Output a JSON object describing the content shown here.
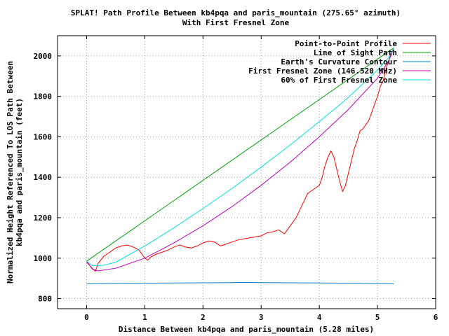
{
  "chart_data": {
    "type": "line",
    "title": "SPLAT! Path Profile Between kb4pqa and paris_mountain (275.65° azimuth)",
    "subtitle": "With First Fresnel Zone",
    "xlabel": "Distance Between kb4pqa and paris_mountain (5.28 miles)",
    "ylabel_line1": "Normalized Height Referenced To LOS Path Between",
    "ylabel_line2": "kb4pqa and paris_mountain (feet)",
    "xlim": [
      -0.5,
      6
    ],
    "ylim": [
      750,
      2100
    ],
    "xticks": [
      "0",
      "1",
      "2",
      "3",
      "4",
      "5",
      "6"
    ],
    "yticks": [
      "800",
      "1000",
      "1200",
      "1400",
      "1600",
      "1800",
      "2000"
    ],
    "grid": true,
    "legend_position": "top-right",
    "series": [
      {
        "name": "Point-to-Point Profile",
        "color": "#ff0000",
        "x": [
          0,
          0.08,
          0.15,
          0.2,
          0.3,
          0.4,
          0.5,
          0.6,
          0.7,
          0.8,
          0.9,
          1.0,
          1.05,
          1.1,
          1.2,
          1.3,
          1.4,
          1.5,
          1.6,
          1.7,
          1.8,
          1.9,
          2.0,
          2.1,
          2.2,
          2.3,
          2.4,
          2.5,
          2.6,
          2.7,
          2.8,
          2.9,
          3.0,
          3.1,
          3.2,
          3.3,
          3.4,
          3.5,
          3.6,
          3.7,
          3.8,
          3.9,
          4.0,
          4.05,
          4.1,
          4.15,
          4.2,
          4.25,
          4.3,
          4.35,
          4.4,
          4.45,
          4.5,
          4.55,
          4.6,
          4.65,
          4.7,
          4.75,
          4.8,
          4.85,
          4.9,
          4.95,
          5.0,
          5.05,
          5.1,
          5.15,
          5.2,
          5.23,
          5.25,
          5.28
        ],
        "values": [
          980,
          955,
          935,
          975,
          1010,
          1030,
          1050,
          1060,
          1065,
          1055,
          1040,
          1000,
          990,
          1005,
          1020,
          1030,
          1040,
          1055,
          1065,
          1055,
          1050,
          1060,
          1075,
          1085,
          1080,
          1060,
          1070,
          1080,
          1090,
          1095,
          1100,
          1105,
          1110,
          1125,
          1130,
          1140,
          1120,
          1160,
          1200,
          1260,
          1320,
          1340,
          1360,
          1400,
          1460,
          1500,
          1530,
          1500,
          1440,
          1380,
          1330,
          1360,
          1420,
          1480,
          1540,
          1580,
          1630,
          1640,
          1660,
          1680,
          1720,
          1760,
          1800,
          1850,
          1880,
          1940,
          1980,
          2010,
          2020,
          2040
        ]
      },
      {
        "name": "Line of Sight Path",
        "color": "#00a000",
        "x": [
          0,
          5.28
        ],
        "values": [
          985,
          2040
        ]
      },
      {
        "name": "Earth's Curvature Contour",
        "color": "#0080c0",
        "x": [
          0,
          0.5,
          1,
          1.5,
          2,
          2.5,
          2.64,
          3,
          3.5,
          4,
          4.5,
          5,
          5.28
        ],
        "values": [
          873,
          875,
          876,
          877,
          878,
          879,
          880,
          879,
          878,
          877,
          876,
          874,
          873
        ]
      },
      {
        "name": "First Fresnel Zone (146.520 MHz)",
        "color": "#c000c0",
        "x": [
          0,
          0.1,
          0.2,
          0.5,
          1.0,
          1.5,
          2.0,
          2.5,
          3.0,
          3.5,
          4.0,
          4.5,
          5.0,
          5.2,
          5.28
        ],
        "values": [
          985,
          945,
          937,
          950,
          1000,
          1075,
          1160,
          1255,
          1360,
          1475,
          1600,
          1735,
          1890,
          1980,
          2040
        ]
      },
      {
        "name": "60% of First Fresnel Zone",
        "color": "#00e0e0",
        "x": [
          0,
          0.1,
          0.3,
          0.5,
          1.0,
          1.5,
          2.0,
          2.5,
          3.0,
          3.5,
          4.0,
          4.5,
          5.0,
          5.2,
          5.28
        ],
        "values": [
          985,
          962,
          965,
          980,
          1060,
          1150,
          1245,
          1345,
          1450,
          1560,
          1675,
          1795,
          1930,
          1995,
          2040
        ]
      }
    ]
  }
}
